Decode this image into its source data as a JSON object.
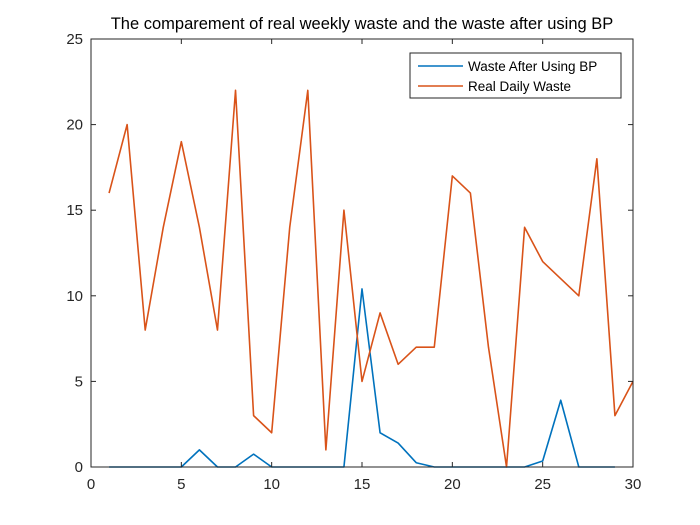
{
  "chart_data": {
    "type": "line",
    "title": "The comparement of real weekly waste and the waste after using BP",
    "xlabel": "",
    "ylabel": "",
    "xlim": [
      0,
      30
    ],
    "ylim": [
      0,
      25
    ],
    "x_ticks": [
      0,
      5,
      10,
      15,
      20,
      25,
      30
    ],
    "y_ticks": [
      0,
      5,
      10,
      15,
      20,
      25
    ],
    "grid": false,
    "legend_position": "top-right",
    "x": [
      1,
      2,
      3,
      4,
      5,
      6,
      7,
      8,
      9,
      10,
      11,
      12,
      13,
      14,
      15,
      16,
      17,
      18,
      19,
      20,
      21,
      22,
      23,
      24,
      25,
      26,
      27,
      28,
      29,
      30
    ],
    "series": [
      {
        "name": "Waste After Using BP",
        "color": "#0072BD",
        "values": [
          0,
          0,
          0,
          0,
          0,
          1.0,
          0,
          0,
          0.75,
          0,
          0,
          0,
          0,
          0,
          10.4,
          2.0,
          1.4,
          0.25,
          0,
          0,
          0,
          0,
          0,
          0,
          0.35,
          3.9,
          0,
          0,
          0,
          null
        ]
      },
      {
        "name": "Real Daily Waste",
        "color": "#D95319",
        "values": [
          16,
          20,
          8,
          14,
          19,
          14,
          8,
          22,
          3,
          2,
          14,
          22,
          1,
          15,
          5,
          9,
          6,
          7,
          7,
          17,
          16,
          7,
          0,
          14,
          12,
          11,
          10,
          18,
          3,
          5
        ]
      }
    ]
  }
}
